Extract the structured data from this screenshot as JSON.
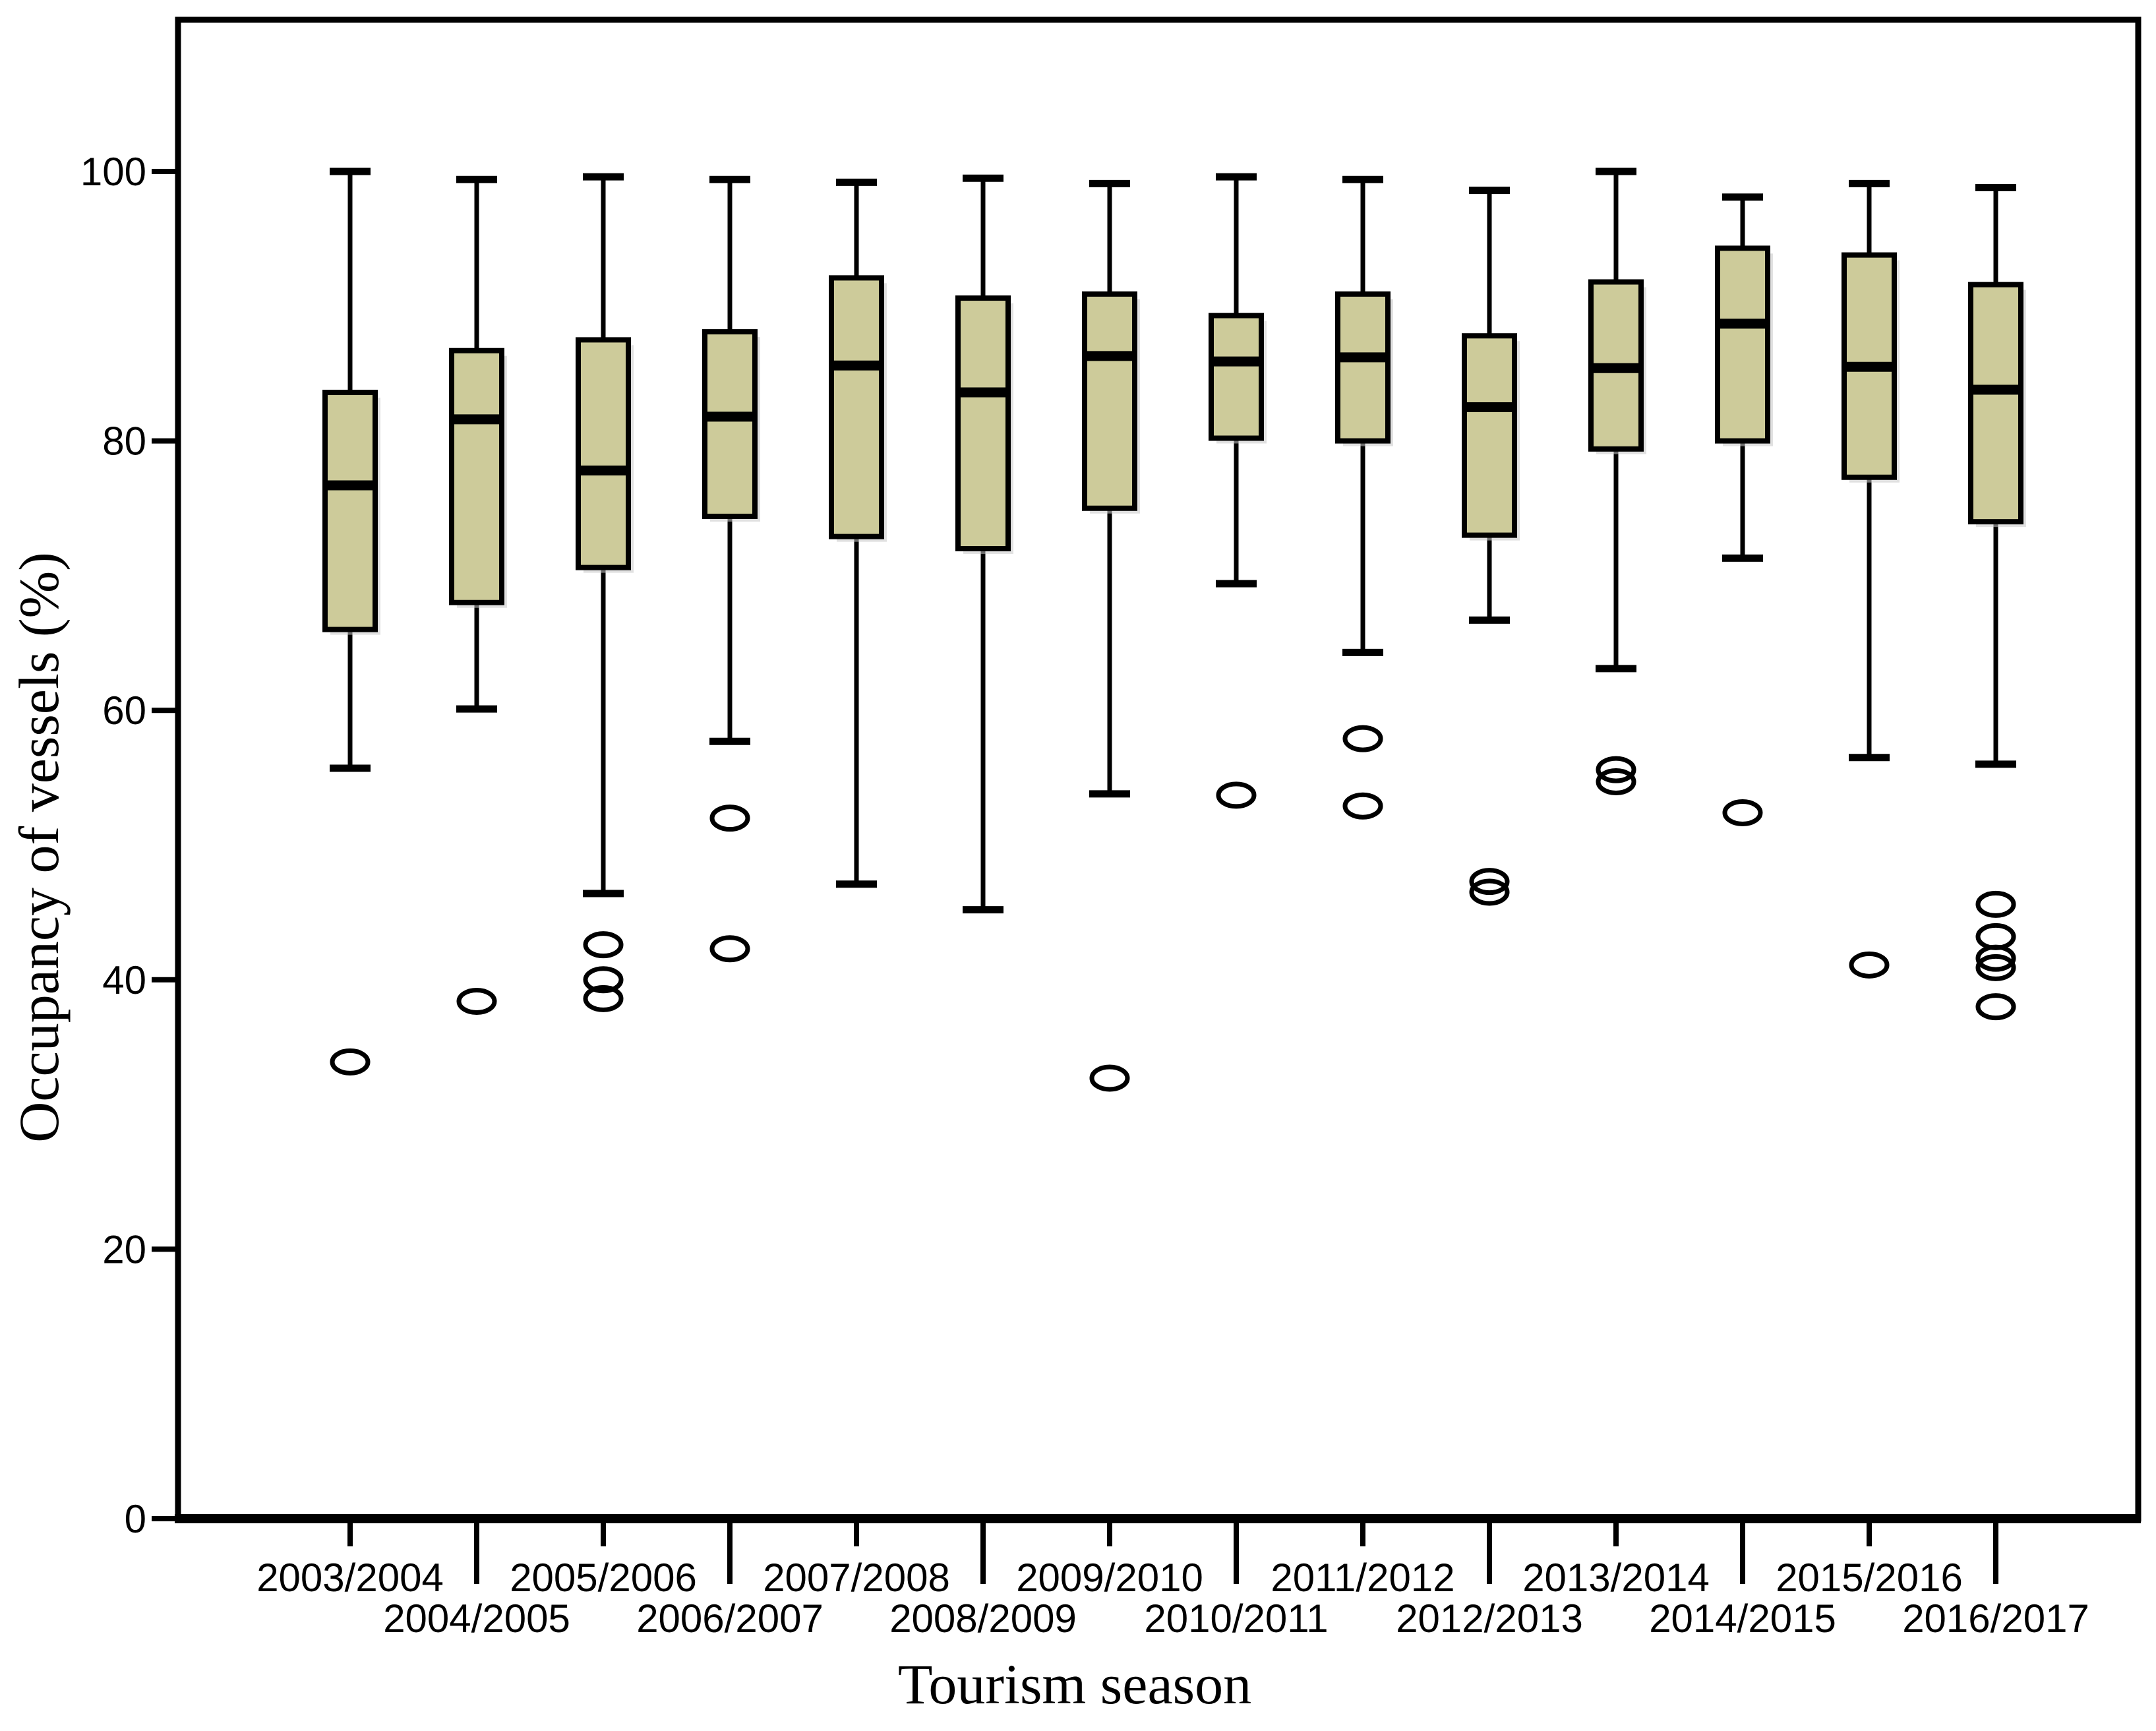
{
  "figure": {
    "x_axis_title": "Tourism season",
    "y_axis_title": "Occupancy of vessels (%)"
  },
  "chart_data": {
    "type": "boxplot",
    "title": "",
    "xlabel": "Tourism season",
    "ylabel": "Occupancy of vessels (%)",
    "ylim": [
      0,
      113
    ],
    "yticks": [
      0,
      20,
      40,
      60,
      80,
      100
    ],
    "grid": false,
    "legend_position": "none",
    "x_label_layout": "staggered-two-rows",
    "colors": {
      "box_fill": "#cdcb9a",
      "box_shadow": "#c9c9c9",
      "line": "#000000",
      "background": "#ffffff"
    },
    "categories": [
      "2003/2004",
      "2004/2005",
      "2005/2006",
      "2006/2007",
      "2007/2008",
      "2008/2009",
      "2009/2010",
      "2010/2011",
      "2011/2012",
      "2012/2013",
      "2013/2014",
      "2014/2015",
      "2015/2016",
      "2016/2017"
    ],
    "boxes": [
      {
        "category": "2003/2004",
        "whisker_low": 55.7,
        "q1": 66.0,
        "median": 76.7,
        "q3": 83.6,
        "whisker_high": 100.0,
        "outliers": [
          33.9
        ]
      },
      {
        "category": "2004/2005",
        "whisker_low": 60.1,
        "q1": 68.0,
        "median": 81.6,
        "q3": 86.7,
        "whisker_high": 99.4,
        "outliers": [
          38.4
        ]
      },
      {
        "category": "2005/2006",
        "whisker_low": 46.4,
        "q1": 70.6,
        "median": 77.8,
        "q3": 87.5,
        "whisker_high": 99.6,
        "outliers": [
          42.6,
          40.0,
          38.6
        ]
      },
      {
        "category": "2006/2007",
        "whisker_low": 57.7,
        "q1": 74.4,
        "median": 81.8,
        "q3": 88.1,
        "whisker_high": 99.4,
        "outliers": [
          52.0,
          42.3
        ]
      },
      {
        "category": "2007/2008",
        "whisker_low": 47.1,
        "q1": 72.9,
        "median": 85.6,
        "q3": 92.1,
        "whisker_high": 99.2,
        "outliers": []
      },
      {
        "category": "2008/2009",
        "whisker_low": 45.2,
        "q1": 72.0,
        "median": 83.6,
        "q3": 90.6,
        "whisker_high": 99.5,
        "outliers": []
      },
      {
        "category": "2009/2010",
        "whisker_low": 53.8,
        "q1": 75.0,
        "median": 86.3,
        "q3": 90.9,
        "whisker_high": 99.1,
        "outliers": [
          32.7
        ]
      },
      {
        "category": "2010/2011",
        "whisker_low": 69.4,
        "q1": 80.2,
        "median": 85.9,
        "q3": 89.3,
        "whisker_high": 99.6,
        "outliers": [
          53.7
        ]
      },
      {
        "category": "2011/2012",
        "whisker_low": 64.3,
        "q1": 80.0,
        "median": 86.2,
        "q3": 90.9,
        "whisker_high": 99.4,
        "outliers": [
          57.9,
          52.9
        ]
      },
      {
        "category": "2012/2013",
        "whisker_low": 66.7,
        "q1": 73.0,
        "median": 82.5,
        "q3": 87.8,
        "whisker_high": 98.6,
        "outliers": [
          47.3,
          46.5
        ]
      },
      {
        "category": "2013/2014",
        "whisker_low": 63.1,
        "q1": 79.4,
        "median": 85.4,
        "q3": 91.8,
        "whisker_high": 100.0,
        "outliers": [
          55.6,
          54.7
        ]
      },
      {
        "category": "2014/2015",
        "whisker_low": 71.3,
        "q1": 80.0,
        "median": 88.7,
        "q3": 94.3,
        "whisker_high": 98.1,
        "outliers": [
          52.4
        ]
      },
      {
        "category": "2015/2016",
        "whisker_low": 56.5,
        "q1": 77.3,
        "median": 85.5,
        "q3": 93.8,
        "whisker_high": 99.1,
        "outliers": [
          41.1
        ]
      },
      {
        "category": "2016/2017",
        "whisker_low": 56.0,
        "q1": 74.0,
        "median": 83.8,
        "q3": 91.6,
        "whisker_high": 98.8,
        "outliers": [
          45.6,
          43.2,
          41.6,
          40.9,
          38.0
        ]
      }
    ]
  }
}
